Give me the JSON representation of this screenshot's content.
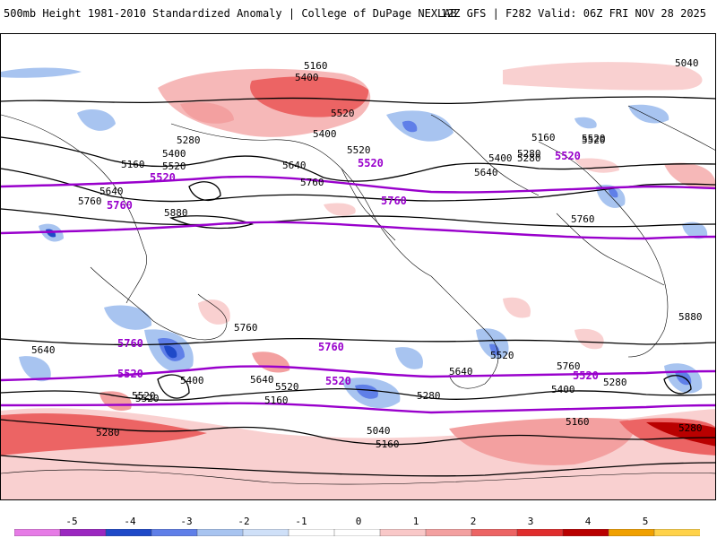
{
  "header": {
    "title": "500mb Height 1981-2010 Standardized Anomaly | College of DuPage NEXLAB",
    "run_info": "12Z GFS | F282 Valid: 06Z FRI NOV 28 2025"
  },
  "map": {
    "contour_labels_black": [
      "5160",
      "5040",
      "5400",
      "5520",
      "5280",
      "5400",
      "5520",
      "5160",
      "5280",
      "5520",
      "5400",
      "5640",
      "5400",
      "5520",
      "5160",
      "5520",
      "5280",
      "5640",
      "5640",
      "5760",
      "5880",
      "5760",
      "5880",
      "5760",
      "5640",
      "5520",
      "5400",
      "5640",
      "5760",
      "5520",
      "5160",
      "5280",
      "5040",
      "5160",
      "5520",
      "5280",
      "5760",
      "5640",
      "5400",
      "5520",
      "5280",
      "5160",
      "5280"
    ],
    "contour_labels_purple": [
      "5520",
      "5520",
      "5760",
      "5760",
      "5760",
      "5760",
      "5520",
      "5520",
      "5520",
      "5520"
    ],
    "colors": {
      "height_contour": "#000000",
      "climo_contour": "#9900cc",
      "land_outline": "#000000"
    }
  },
  "legend": {
    "ticks": [
      "-5",
      "-4",
      "-3",
      "-2",
      "-1",
      "0",
      "1",
      "2",
      "3",
      "4",
      "5"
    ],
    "colors": [
      "#e67be6",
      "#9b27c0",
      "#1f49c8",
      "#5f7fe8",
      "#a8c4f0",
      "#cfe0f8",
      "#ffffff",
      "#ffffff",
      "#f9c8c8",
      "#f3a0a0",
      "#ec6464",
      "#e02d2d",
      "#b90000",
      "#f0a000",
      "#ffd24a"
    ]
  }
}
